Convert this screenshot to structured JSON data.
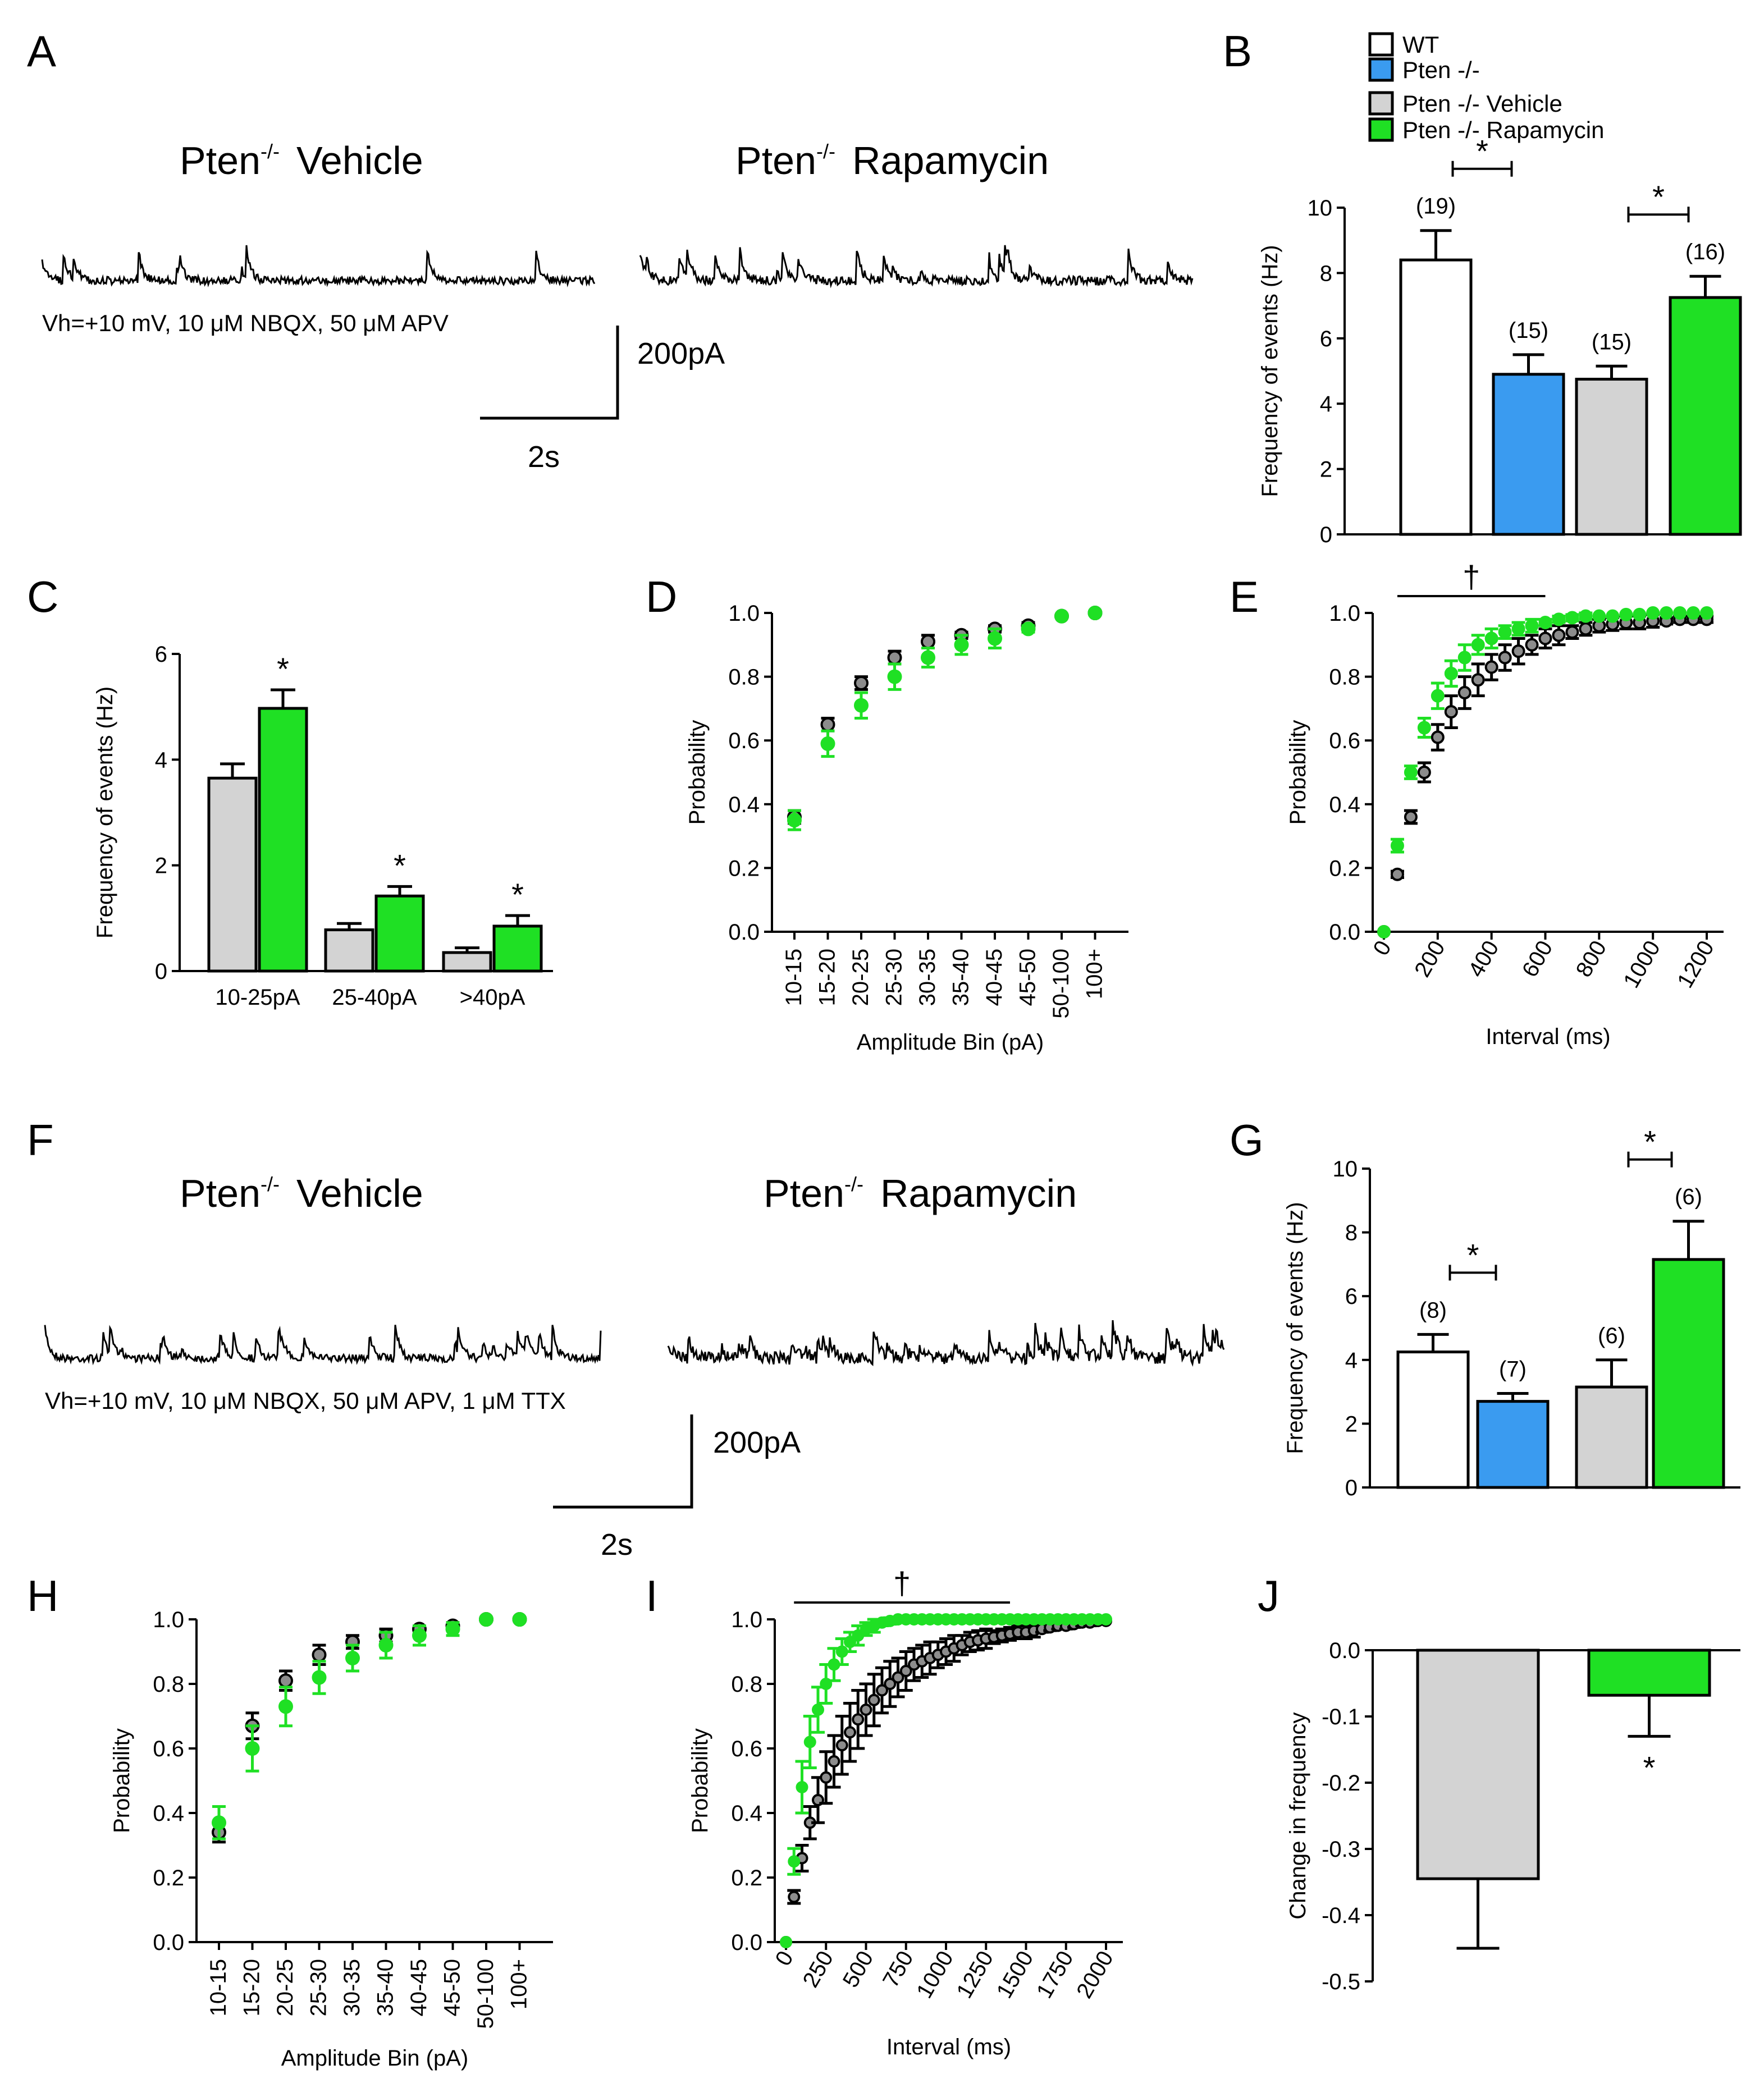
{
  "colors": {
    "wt": "#ffffff",
    "pten": "#3a9bf0",
    "vehicle": "#d3d3d3",
    "rapamycin": "#1fe024",
    "vehicle_marker": "#8c8c8c",
    "axis": "#000000"
  },
  "legend": {
    "items": [
      {
        "label": "WT",
        "color": "#ffffff"
      },
      {
        "label": "Pten -/-",
        "color": "#3a9bf0"
      },
      {
        "label": "Pten -/- Vehicle",
        "color": "#d3d3d3"
      },
      {
        "label": "Pten -/- Rapamycin",
        "color": "#1fe024"
      }
    ]
  },
  "panel_A": {
    "letter": "A",
    "trace_vehicle_title_a": "Pten",
    "trace_vehicle_sup": "-/-",
    "trace_vehicle_title_b": "Vehicle",
    "trace_rapa_title_a": "Pten",
    "trace_rapa_sup": "-/-",
    "trace_rapa_title_b": "Rapamycin",
    "conditions": "Vh=+10 mV, 10 μM NBQX, 50 μM APV",
    "scale_y": "200pA",
    "scale_x": "2s"
  },
  "panel_F": {
    "letter": "F",
    "trace_vehicle_title_a": "Pten",
    "trace_vehicle_sup": "-/-",
    "trace_vehicle_title_b": "Vehicle",
    "trace_rapa_title_a": "Pten",
    "trace_rapa_sup": "-/-",
    "trace_rapa_title_b": "Rapamycin",
    "conditions": "Vh=+10 mV, 10 μM NBQX, 50 μM APV, 1 μM TTX",
    "scale_y": "200pA",
    "scale_x": "2s"
  },
  "chart_data": [
    {
      "panel": "B",
      "type": "bar",
      "ylabel": "Frequency of events (Hz)",
      "ylim": [
        0,
        10
      ],
      "yticks": [
        0,
        2,
        4,
        6,
        8,
        10
      ],
      "series": [
        {
          "name": "WT",
          "value": 8.4,
          "error": 0.9,
          "n_label": "(19)",
          "color": "#ffffff"
        },
        {
          "name": "Pten -/-",
          "value": 4.9,
          "error": 0.6,
          "n_label": "(15)",
          "color": "#3a9bf0"
        },
        {
          "name": "Pten -/- Vehicle",
          "value": 4.75,
          "error": 0.4,
          "n_label": "(15)",
          "color": "#d3d3d3"
        },
        {
          "name": "Pten -/- Rapamycin",
          "value": 7.25,
          "error": 0.65,
          "n_label": "(16)",
          "color": "#1fe024"
        }
      ],
      "significance": [
        {
          "pair": [
            0,
            1
          ],
          "label": "*"
        },
        {
          "pair": [
            2,
            3
          ],
          "label": "*"
        }
      ]
    },
    {
      "panel": "C",
      "type": "bar",
      "ylabel": "Frequency of events (Hz)",
      "ylim": [
        0,
        6
      ],
      "yticks": [
        0,
        2,
        4,
        6
      ],
      "categories": [
        "10-25pA",
        "25-40pA",
        ">40pA"
      ],
      "series": [
        {
          "name": "Pten -/- Vehicle",
          "values": [
            3.65,
            0.78,
            0.35
          ],
          "errors": [
            0.27,
            0.12,
            0.09
          ],
          "color": "#d3d3d3"
        },
        {
          "name": "Pten -/- Rapamycin",
          "values": [
            4.97,
            1.42,
            0.85
          ],
          "errors": [
            0.35,
            0.18,
            0.2
          ],
          "color": "#1fe024"
        }
      ],
      "significance": [
        "*",
        "*",
        "*"
      ]
    },
    {
      "panel": "D",
      "type": "scatter",
      "xlabel": "Amplitude Bin (pA)",
      "ylabel": "Probability",
      "ylim": [
        0,
        1
      ],
      "yticks": [
        "0.0",
        "0.2",
        "0.4",
        "0.6",
        "0.8",
        "1.0"
      ],
      "categories": [
        "10-15",
        "15-20",
        "20-25",
        "25-30",
        "30-35",
        "35-40",
        "40-45",
        "45-50",
        "50-100",
        "100+"
      ],
      "series": [
        {
          "name": "Pten -/- Vehicle",
          "values": [
            0.36,
            0.65,
            0.78,
            0.86,
            0.91,
            0.93,
            0.95,
            0.96,
            0.99,
            1.0
          ],
          "errors": [
            0.02,
            0.02,
            0.02,
            0.02,
            0.02,
            0.01,
            0.01,
            0.01,
            0.0,
            0.0
          ]
        },
        {
          "name": "Pten -/- Rapamycin",
          "values": [
            0.35,
            0.59,
            0.71,
            0.8,
            0.86,
            0.9,
            0.92,
            0.95,
            0.99,
            1.0
          ],
          "errors": [
            0.03,
            0.04,
            0.04,
            0.04,
            0.03,
            0.03,
            0.03,
            0.01,
            0.0,
            0.0
          ]
        }
      ]
    },
    {
      "panel": "E",
      "type": "scatter",
      "xlabel": "Interval (ms)",
      "ylabel": "Probability",
      "xlim": [
        0,
        1200
      ],
      "xticks": [
        0,
        200,
        400,
        600,
        800,
        1000,
        1200
      ],
      "ylim": [
        0,
        1
      ],
      "yticks": [
        "0.0",
        "0.2",
        "0.4",
        "0.6",
        "0.8",
        "1.0"
      ],
      "annotation": "†",
      "annotation_range": [
        50,
        600
      ],
      "series": [
        {
          "name": "Pten -/- Vehicle",
          "x": [
            0,
            50,
            100,
            150,
            200,
            250,
            300,
            350,
            400,
            450,
            500,
            550,
            600,
            650,
            700,
            750,
            800,
            850,
            900,
            950,
            1000,
            1050,
            1100,
            1150,
            1200
          ],
          "values": [
            0,
            0.18,
            0.36,
            0.5,
            0.61,
            0.69,
            0.75,
            0.79,
            0.83,
            0.86,
            0.88,
            0.9,
            0.92,
            0.93,
            0.94,
            0.95,
            0.96,
            0.965,
            0.97,
            0.97,
            0.975,
            0.975,
            0.98,
            0.98,
            0.98
          ],
          "errors": [
            0,
            0.01,
            0.02,
            0.03,
            0.04,
            0.05,
            0.05,
            0.05,
            0.04,
            0.04,
            0.04,
            0.03,
            0.03,
            0.03,
            0.02,
            0.02,
            0.02,
            0.02,
            0.02,
            0.02,
            0.02,
            0.01,
            0.01,
            0.01,
            0.01
          ]
        },
        {
          "name": "Pten -/- Rapamycin",
          "x": [
            0,
            50,
            100,
            150,
            200,
            250,
            300,
            350,
            400,
            450,
            500,
            550,
            600,
            650,
            700,
            750,
            800,
            850,
            900,
            950,
            1000,
            1050,
            1100,
            1150,
            1200
          ],
          "values": [
            0,
            0.27,
            0.5,
            0.64,
            0.74,
            0.81,
            0.86,
            0.9,
            0.92,
            0.94,
            0.95,
            0.96,
            0.97,
            0.98,
            0.985,
            0.99,
            0.99,
            0.99,
            0.995,
            0.995,
            1.0,
            1.0,
            1.0,
            1.0,
            1.0
          ],
          "errors": [
            0,
            0.02,
            0.02,
            0.03,
            0.04,
            0.04,
            0.04,
            0.03,
            0.03,
            0.02,
            0.02,
            0.02,
            0.01,
            0.01,
            0.01,
            0.01,
            0.0,
            0.0,
            0.0,
            0.0,
            0.0,
            0.0,
            0.0,
            0.0,
            0.0
          ]
        }
      ]
    },
    {
      "panel": "G",
      "type": "bar",
      "ylabel": "Frequency of events (Hz)",
      "ylim": [
        0,
        10
      ],
      "yticks": [
        0,
        2,
        4,
        6,
        8,
        10
      ],
      "series": [
        {
          "name": "WT",
          "value": 4.25,
          "error": 0.55,
          "n_label": "(8)",
          "color": "#ffffff"
        },
        {
          "name": "Pten -/-",
          "value": 2.7,
          "error": 0.25,
          "n_label": "(7)",
          "color": "#3a9bf0"
        },
        {
          "name": "Pten -/- Vehicle",
          "value": 3.15,
          "error": 0.85,
          "n_label": "(6)",
          "color": "#d3d3d3"
        },
        {
          "name": "Pten -/- Rapamycin",
          "value": 7.15,
          "error": 1.2,
          "n_label": "(6)",
          "color": "#1fe024"
        }
      ],
      "significance": [
        {
          "pair": [
            0,
            1
          ],
          "label": "*"
        },
        {
          "pair": [
            2,
            3
          ],
          "label": "*"
        }
      ]
    },
    {
      "panel": "H",
      "type": "scatter",
      "xlabel": "Amplitude Bin (pA)",
      "ylabel": "Probability",
      "ylim": [
        0,
        1
      ],
      "yticks": [
        "0.0",
        "0.2",
        "0.4",
        "0.6",
        "0.8",
        "1.0"
      ],
      "categories": [
        "10-15",
        "15-20",
        "20-25",
        "25-30",
        "30-35",
        "35-40",
        "40-45",
        "45-50",
        "50-100",
        "100+"
      ],
      "series": [
        {
          "name": "Pten -/- Vehicle",
          "values": [
            0.34,
            0.67,
            0.81,
            0.89,
            0.93,
            0.95,
            0.97,
            0.98,
            1.0,
            1.0
          ],
          "errors": [
            0.03,
            0.04,
            0.03,
            0.03,
            0.02,
            0.02,
            0.01,
            0.01,
            0.0,
            0.0
          ]
        },
        {
          "name": "Pten -/- Rapamycin",
          "values": [
            0.37,
            0.6,
            0.73,
            0.82,
            0.88,
            0.92,
            0.95,
            0.97,
            1.0,
            1.0
          ],
          "errors": [
            0.05,
            0.07,
            0.06,
            0.05,
            0.04,
            0.04,
            0.03,
            0.02,
            0.0,
            0.0
          ]
        }
      ]
    },
    {
      "panel": "I",
      "type": "scatter",
      "xlabel": "Interval (ms)",
      "ylabel": "Probability",
      "xlim": [
        0,
        2000
      ],
      "xticks": [
        0,
        250,
        500,
        750,
        1000,
        1250,
        1500,
        1750,
        2000
      ],
      "ylim": [
        0,
        1
      ],
      "yticks": [
        "0.0",
        "0.2",
        "0.4",
        "0.6",
        "0.8",
        "1.0"
      ],
      "annotation": "†",
      "annotation_range": [
        50,
        1400
      ],
      "series": [
        {
          "name": "Pten -/- Vehicle",
          "x": [
            0,
            50,
            100,
            150,
            200,
            250,
            300,
            350,
            400,
            450,
            500,
            550,
            600,
            650,
            700,
            750,
            800,
            850,
            900,
            950,
            1000,
            1050,
            1100,
            1150,
            1200,
            1250,
            1300,
            1350,
            1400,
            1450,
            1500,
            1550,
            1600,
            1650,
            1700,
            1750,
            1800,
            1850,
            1900,
            1950,
            2000
          ],
          "values": [
            0,
            0.14,
            0.26,
            0.37,
            0.44,
            0.51,
            0.56,
            0.61,
            0.65,
            0.69,
            0.72,
            0.75,
            0.78,
            0.8,
            0.82,
            0.84,
            0.86,
            0.87,
            0.88,
            0.89,
            0.9,
            0.91,
            0.92,
            0.93,
            0.935,
            0.94,
            0.945,
            0.95,
            0.955,
            0.96,
            0.96,
            0.965,
            0.97,
            0.975,
            0.98,
            0.98,
            0.985,
            0.99,
            0.99,
            0.995,
            0.995
          ],
          "errors": [
            0,
            0.02,
            0.04,
            0.05,
            0.07,
            0.08,
            0.08,
            0.09,
            0.09,
            0.09,
            0.08,
            0.08,
            0.07,
            0.07,
            0.06,
            0.06,
            0.05,
            0.05,
            0.05,
            0.04,
            0.04,
            0.04,
            0.03,
            0.03,
            0.03,
            0.03,
            0.02,
            0.02,
            0.02,
            0.02,
            0.02,
            0.02,
            0.01,
            0.01,
            0.01,
            0.01,
            0.01,
            0.01,
            0.01,
            0.0,
            0.0
          ]
        },
        {
          "name": "Pten -/- Rapamycin",
          "x": [
            0,
            50,
            100,
            150,
            200,
            250,
            300,
            350,
            400,
            450,
            500,
            550,
            600,
            650,
            700,
            750,
            800,
            850,
            900,
            950,
            1000,
            1050,
            1100,
            1150,
            1200,
            1250,
            1300,
            1350,
            1400,
            1450,
            1500,
            1550,
            1600,
            1650,
            1700,
            1750,
            1800,
            1850,
            1900,
            1950,
            2000
          ],
          "values": [
            0,
            0.25,
            0.48,
            0.62,
            0.72,
            0.8,
            0.86,
            0.9,
            0.93,
            0.95,
            0.97,
            0.98,
            0.99,
            0.995,
            1.0,
            1.0,
            1.0,
            1.0,
            1.0,
            1.0,
            1.0,
            1.0,
            1.0,
            1.0,
            1.0,
            1.0,
            1.0,
            1.0,
            1.0,
            1.0,
            1.0,
            1.0,
            1.0,
            1.0,
            1.0,
            1.0,
            1.0,
            1.0,
            1.0,
            1.0,
            1.0
          ],
          "errors": [
            0,
            0.04,
            0.08,
            0.08,
            0.07,
            0.06,
            0.05,
            0.04,
            0.03,
            0.03,
            0.02,
            0.02,
            0.01,
            0.01,
            0.0,
            0.0,
            0.0,
            0.0,
            0.0,
            0.0,
            0.0,
            0.0,
            0.0,
            0.0,
            0.0,
            0.0,
            0.0,
            0.0,
            0.0,
            0.0,
            0.0,
            0.0,
            0.0,
            0.0,
            0.0,
            0.0,
            0.0,
            0.0,
            0.0,
            0.0,
            0.0
          ]
        }
      ]
    },
    {
      "panel": "J",
      "type": "bar",
      "ylabel": "Change in frequency",
      "ylim": [
        -0.5,
        0
      ],
      "yticks": [
        "-0.5",
        "-0.4",
        "-0.3",
        "-0.2",
        "-0.1",
        "0.0"
      ],
      "series": [
        {
          "name": "Pten -/- Vehicle",
          "value": -0.345,
          "error": 0.105,
          "color": "#d3d3d3"
        },
        {
          "name": "Pten -/- Rapamycin",
          "value": -0.068,
          "error": 0.062,
          "color": "#1fe024"
        }
      ],
      "significance": [
        {
          "index": 1,
          "label": "*"
        }
      ]
    }
  ]
}
